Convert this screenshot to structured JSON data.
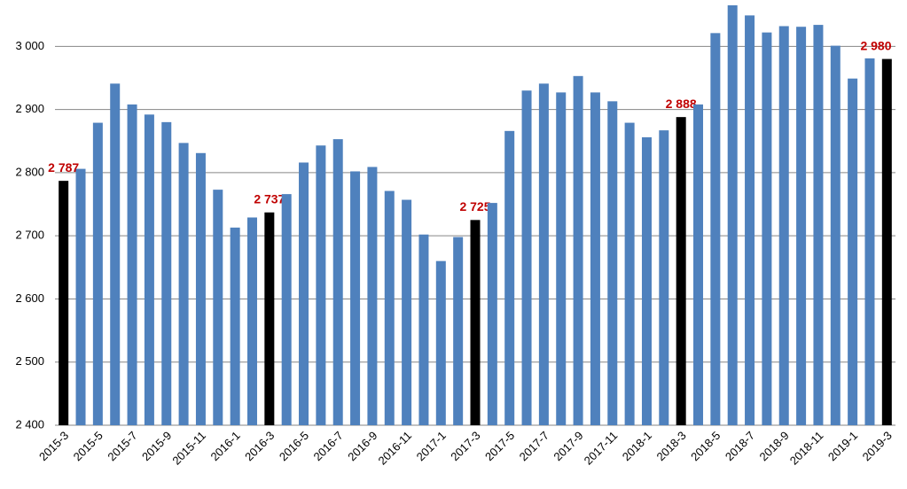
{
  "chart_data": {
    "type": "bar",
    "categories": [
      "2015-3",
      null,
      "2015-5",
      null,
      "2015-7",
      null,
      "2015-9",
      null,
      "2015-11",
      null,
      "2016-1",
      null,
      "2016-3",
      null,
      "2016-5",
      null,
      "2016-7",
      null,
      "2016-9",
      null,
      "2016-11",
      null,
      "2017-1",
      null,
      "2017-3",
      null,
      "2017-5",
      null,
      "2017-7",
      null,
      "2017-9",
      null,
      "2017-11",
      null,
      "2018-1",
      null,
      "2018-3",
      null,
      "2018-5",
      null,
      "2018-7",
      null,
      "2018-9",
      null,
      "2018-11",
      null,
      "2019-1",
      null,
      "2019-3"
    ],
    "values": [
      2787,
      2806,
      2879,
      2941,
      2908,
      2892,
      2880,
      2847,
      2831,
      2773,
      2713,
      2729,
      2737,
      2766,
      2816,
      2843,
      2853,
      2802,
      2809,
      2771,
      2757,
      2702,
      2660,
      2698,
      2725,
      2752,
      2866,
      2930,
      2941,
      2927,
      2953,
      2927,
      2913,
      2879,
      2856,
      2867,
      2888,
      2908,
      3021,
      3065,
      3049,
      3022,
      3032,
      3031,
      3034,
      3001,
      2949,
      2981,
      2980
    ],
    "value_labels": [
      "2 787",
      null,
      null,
      null,
      null,
      null,
      null,
      null,
      null,
      null,
      null,
      null,
      "2 737",
      null,
      null,
      null,
      null,
      null,
      null,
      null,
      null,
      null,
      null,
      null,
      "2 725",
      null,
      null,
      null,
      null,
      null,
      null,
      null,
      null,
      null,
      null,
      null,
      "2 888",
      null,
      null,
      null,
      null,
      null,
      null,
      null,
      null,
      null,
      null,
      null,
      "2 980"
    ],
    "colors": [
      "#000000",
      "#4f81bd",
      "#4f81bd",
      "#4f81bd",
      "#4f81bd",
      "#4f81bd",
      "#4f81bd",
      "#4f81bd",
      "#4f81bd",
      "#4f81bd",
      "#4f81bd",
      "#4f81bd",
      "#000000",
      "#4f81bd",
      "#4f81bd",
      "#4f81bd",
      "#4f81bd",
      "#4f81bd",
      "#4f81bd",
      "#4f81bd",
      "#4f81bd",
      "#4f81bd",
      "#4f81bd",
      "#4f81bd",
      "#000000",
      "#4f81bd",
      "#4f81bd",
      "#4f81bd",
      "#4f81bd",
      "#4f81bd",
      "#4f81bd",
      "#4f81bd",
      "#4f81bd",
      "#4f81bd",
      "#4f81bd",
      "#4f81bd",
      "#000000",
      "#4f81bd",
      "#4f81bd",
      "#4f81bd",
      "#4f81bd",
      "#4f81bd",
      "#4f81bd",
      "#4f81bd",
      "#4f81bd",
      "#4f81bd",
      "#4f81bd",
      "#4f81bd",
      "#000000"
    ],
    "label_color": "#c00000",
    "ylim": [
      2400,
      3072
    ],
    "yticks": [
      {
        "value": 2400,
        "label": "2 400"
      },
      {
        "value": 2500,
        "label": "2 500"
      },
      {
        "value": 2600,
        "label": "2 600"
      },
      {
        "value": 2700,
        "label": "2 700"
      },
      {
        "value": 2800,
        "label": "2 800"
      },
      {
        "value": 2900,
        "label": "2 900"
      },
      {
        "value": 3000,
        "label": "3 000"
      }
    ],
    "grid": true
  }
}
